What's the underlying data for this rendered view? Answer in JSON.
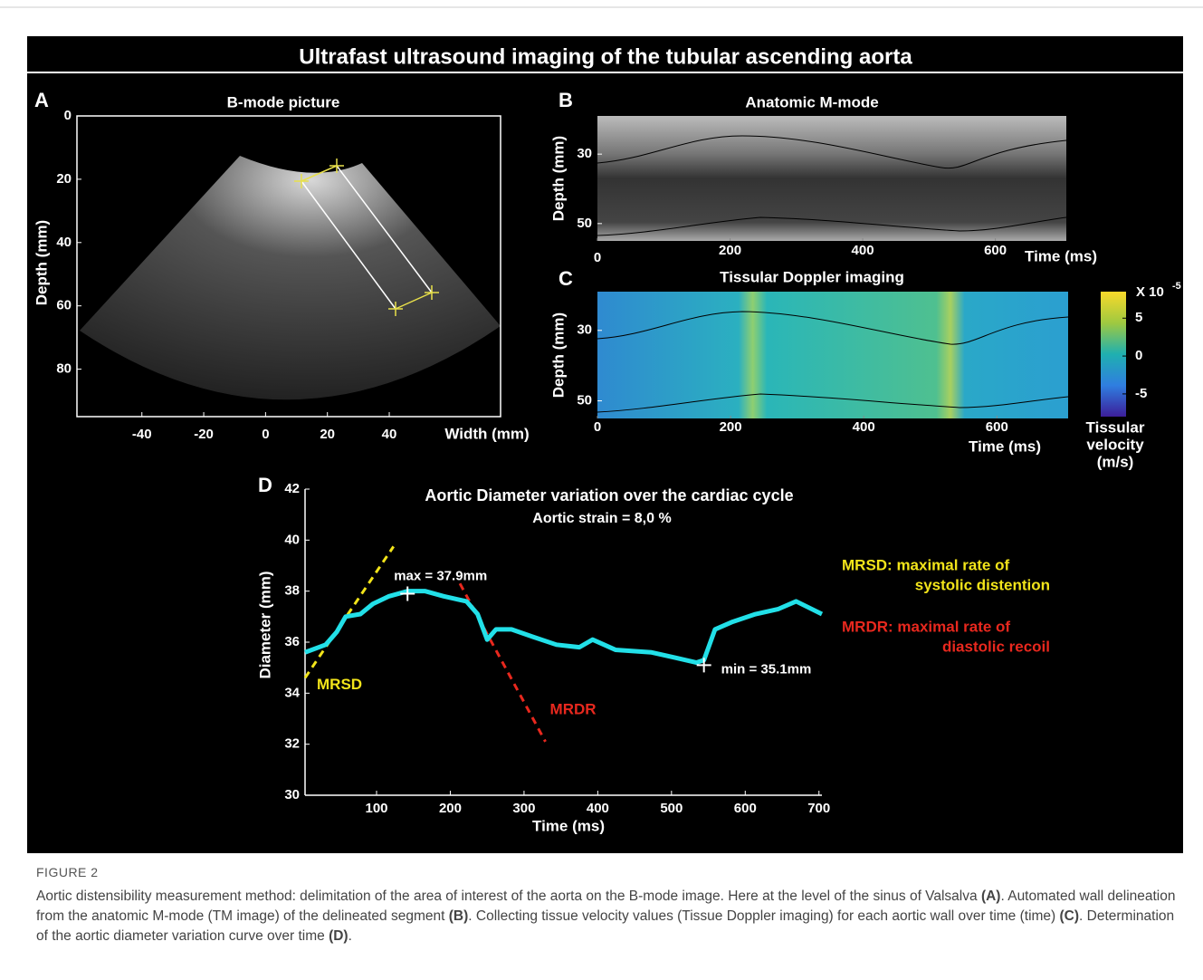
{
  "figure": {
    "title": "Ultrafast ultrasound imaging of the  tubular ascending aorta",
    "label": "FIGURE 2",
    "caption": [
      {
        "text": "Aortic distensibility measurement method: delimitation of the area of interest of the aorta on the B-mode image. Here at the level of the sinus of Valsalva ",
        "bold": false
      },
      {
        "text": "(A)",
        "bold": true
      },
      {
        "text": ". Automated wall delineation from the anatomic M-mode (TM image) of the delineated segment ",
        "bold": false
      },
      {
        "text": "(B)",
        "bold": true
      },
      {
        "text": ". Collecting tissue velocity values (Tissue Doppler imaging) for each aortic wall over time (time) ",
        "bold": false
      },
      {
        "text": "(C)",
        "bold": true
      },
      {
        "text": ". Determination of the aortic diameter variation curve over time ",
        "bold": false
      },
      {
        "text": "(D)",
        "bold": true
      },
      {
        "text": ".",
        "bold": false
      }
    ]
  },
  "chart_data": [
    {
      "type": "image",
      "panel": "A",
      "title": "B-mode picture",
      "xlabel": "Width (mm)",
      "ylabel": "Depth (mm)",
      "xlim": [
        -61,
        76
      ],
      "ylim": [
        0,
        95
      ],
      "xticks": [
        -40,
        -20,
        0,
        20,
        40
      ],
      "yticks": [
        0,
        20,
        40,
        60,
        80
      ],
      "y_inverted": true
    },
    {
      "type": "image",
      "panel": "B",
      "title": "Anatomic M-mode",
      "xlabel": "Time (ms)",
      "ylabel": "Depth (mm)",
      "xlim": [
        0,
        707
      ],
      "ylim": [
        19,
        55
      ],
      "xticks": [
        0,
        200,
        400,
        600
      ],
      "yticks": [
        30,
        50
      ],
      "y_inverted": true
    },
    {
      "type": "image",
      "panel": "C",
      "title": "Tissular Doppler imaging",
      "xlabel": "Time (ms)",
      "ylabel": "Depth (mm)",
      "xlim": [
        0,
        707
      ],
      "ylim": [
        19,
        55
      ],
      "xticks": [
        0,
        200,
        400,
        600
      ],
      "yticks": [
        30,
        50
      ],
      "y_inverted": true,
      "colorbar": {
        "label": [
          "Tissular",
          "velocity",
          "(m/s)"
        ],
        "scale": "X 10",
        "exponent": -5,
        "lim": [
          -8,
          8.5
        ],
        "ticks": [
          5,
          0,
          -5
        ]
      }
    },
    {
      "type": "line",
      "panel": "D",
      "title": "Aortic Diameter variation over the cardiac cycle",
      "subtitle": "Aortic strain = 8,0 %",
      "xlabel": "Time (ms)",
      "ylabel": "Diameter (mm)",
      "xlim": [
        3,
        704
      ],
      "ylim": [
        30,
        42
      ],
      "xticks": [
        100,
        200,
        300,
        400,
        500,
        600,
        700
      ],
      "yticks": [
        30,
        32,
        34,
        36,
        38,
        40,
        42
      ],
      "series": [
        {
          "color": "#22e0e8",
          "x": [
            3,
            31,
            46,
            58,
            78,
            95,
            117,
            142,
            166,
            191,
            222,
            237,
            250,
            262,
            283,
            313,
            344,
            375,
            393,
            424,
            473,
            504,
            534,
            544,
            559,
            583,
            614,
            645,
            669,
            704
          ],
          "values": [
            35.6,
            35.9,
            36.4,
            37.0,
            37.1,
            37.5,
            37.8,
            38.0,
            38.0,
            37.8,
            37.6,
            37.1,
            36.1,
            36.5,
            36.5,
            36.2,
            35.9,
            35.8,
            36.1,
            35.7,
            35.6,
            35.4,
            35.2,
            35.3,
            36.5,
            36.8,
            37.1,
            37.3,
            37.6,
            37.1
          ]
        }
      ],
      "points": [
        {
          "label": "max = 37.9mm",
          "x": 142,
          "y": 37.9
        },
        {
          "label": "min = 35.1mm",
          "x": 544,
          "y": 35.1
        }
      ],
      "tangents": [
        {
          "label": "MRSD",
          "color": "#f2e41a",
          "x": [
            3,
            123
          ],
          "values": [
            34.6,
            39.75
          ]
        },
        {
          "label": "MRDR",
          "color": "#e8281e",
          "x": [
            213,
            329
          ],
          "values": [
            38.3,
            32.1
          ]
        }
      ],
      "legend": [
        {
          "color": "#f2e41a",
          "lines": [
            "MRSD: maximal rate  of",
            "systolic distention"
          ]
        },
        {
          "color": "#e8281e",
          "lines": [
            "MRDR: maximal rate of",
            "diastolic recoil"
          ]
        }
      ]
    }
  ]
}
